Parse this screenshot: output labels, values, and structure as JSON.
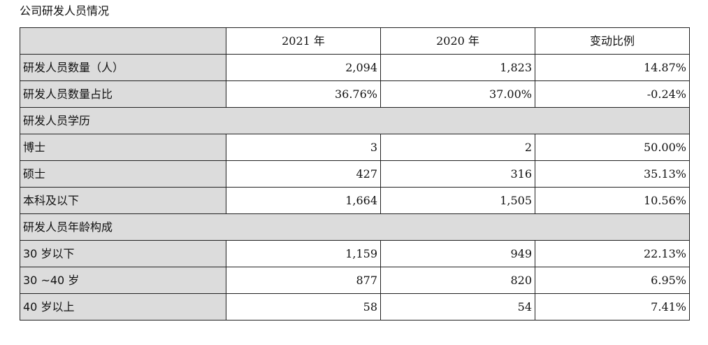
{
  "page": {
    "title": "公司研发人员情况"
  },
  "table": {
    "headers": [
      "",
      "2021 年",
      "2020 年",
      "变动比例"
    ],
    "rows": [
      {
        "type": "data",
        "label": "研发人员数量（人）",
        "values": [
          "2,094",
          "1,823",
          "14.87%"
        ]
      },
      {
        "type": "data",
        "label": "研发人员数量占比",
        "values": [
          "36.76%",
          "37.00%",
          "-0.24%"
        ]
      },
      {
        "type": "section",
        "label": "研发人员学历"
      },
      {
        "type": "data",
        "label": "博士",
        "values": [
          "3",
          "2",
          "50.00%"
        ]
      },
      {
        "type": "data",
        "label": "硕士",
        "values": [
          "427",
          "316",
          "35.13%"
        ]
      },
      {
        "type": "data",
        "label": "本科及以下",
        "values": [
          "1,664",
          "1,505",
          "10.56%"
        ]
      },
      {
        "type": "section",
        "label": "研发人员年龄构成"
      },
      {
        "type": "data",
        "label": "30 岁以下",
        "values": [
          "1,159",
          "949",
          "22.13%"
        ]
      },
      {
        "type": "data",
        "label": "30 ~40 岁",
        "values": [
          "877",
          "820",
          "6.95%"
        ]
      },
      {
        "type": "data",
        "label": "40 岁以上",
        "values": [
          "58",
          "54",
          "7.41%"
        ]
      }
    ]
  },
  "colors": {
    "label_background": "#dcdcdc",
    "border": "#222222"
  }
}
